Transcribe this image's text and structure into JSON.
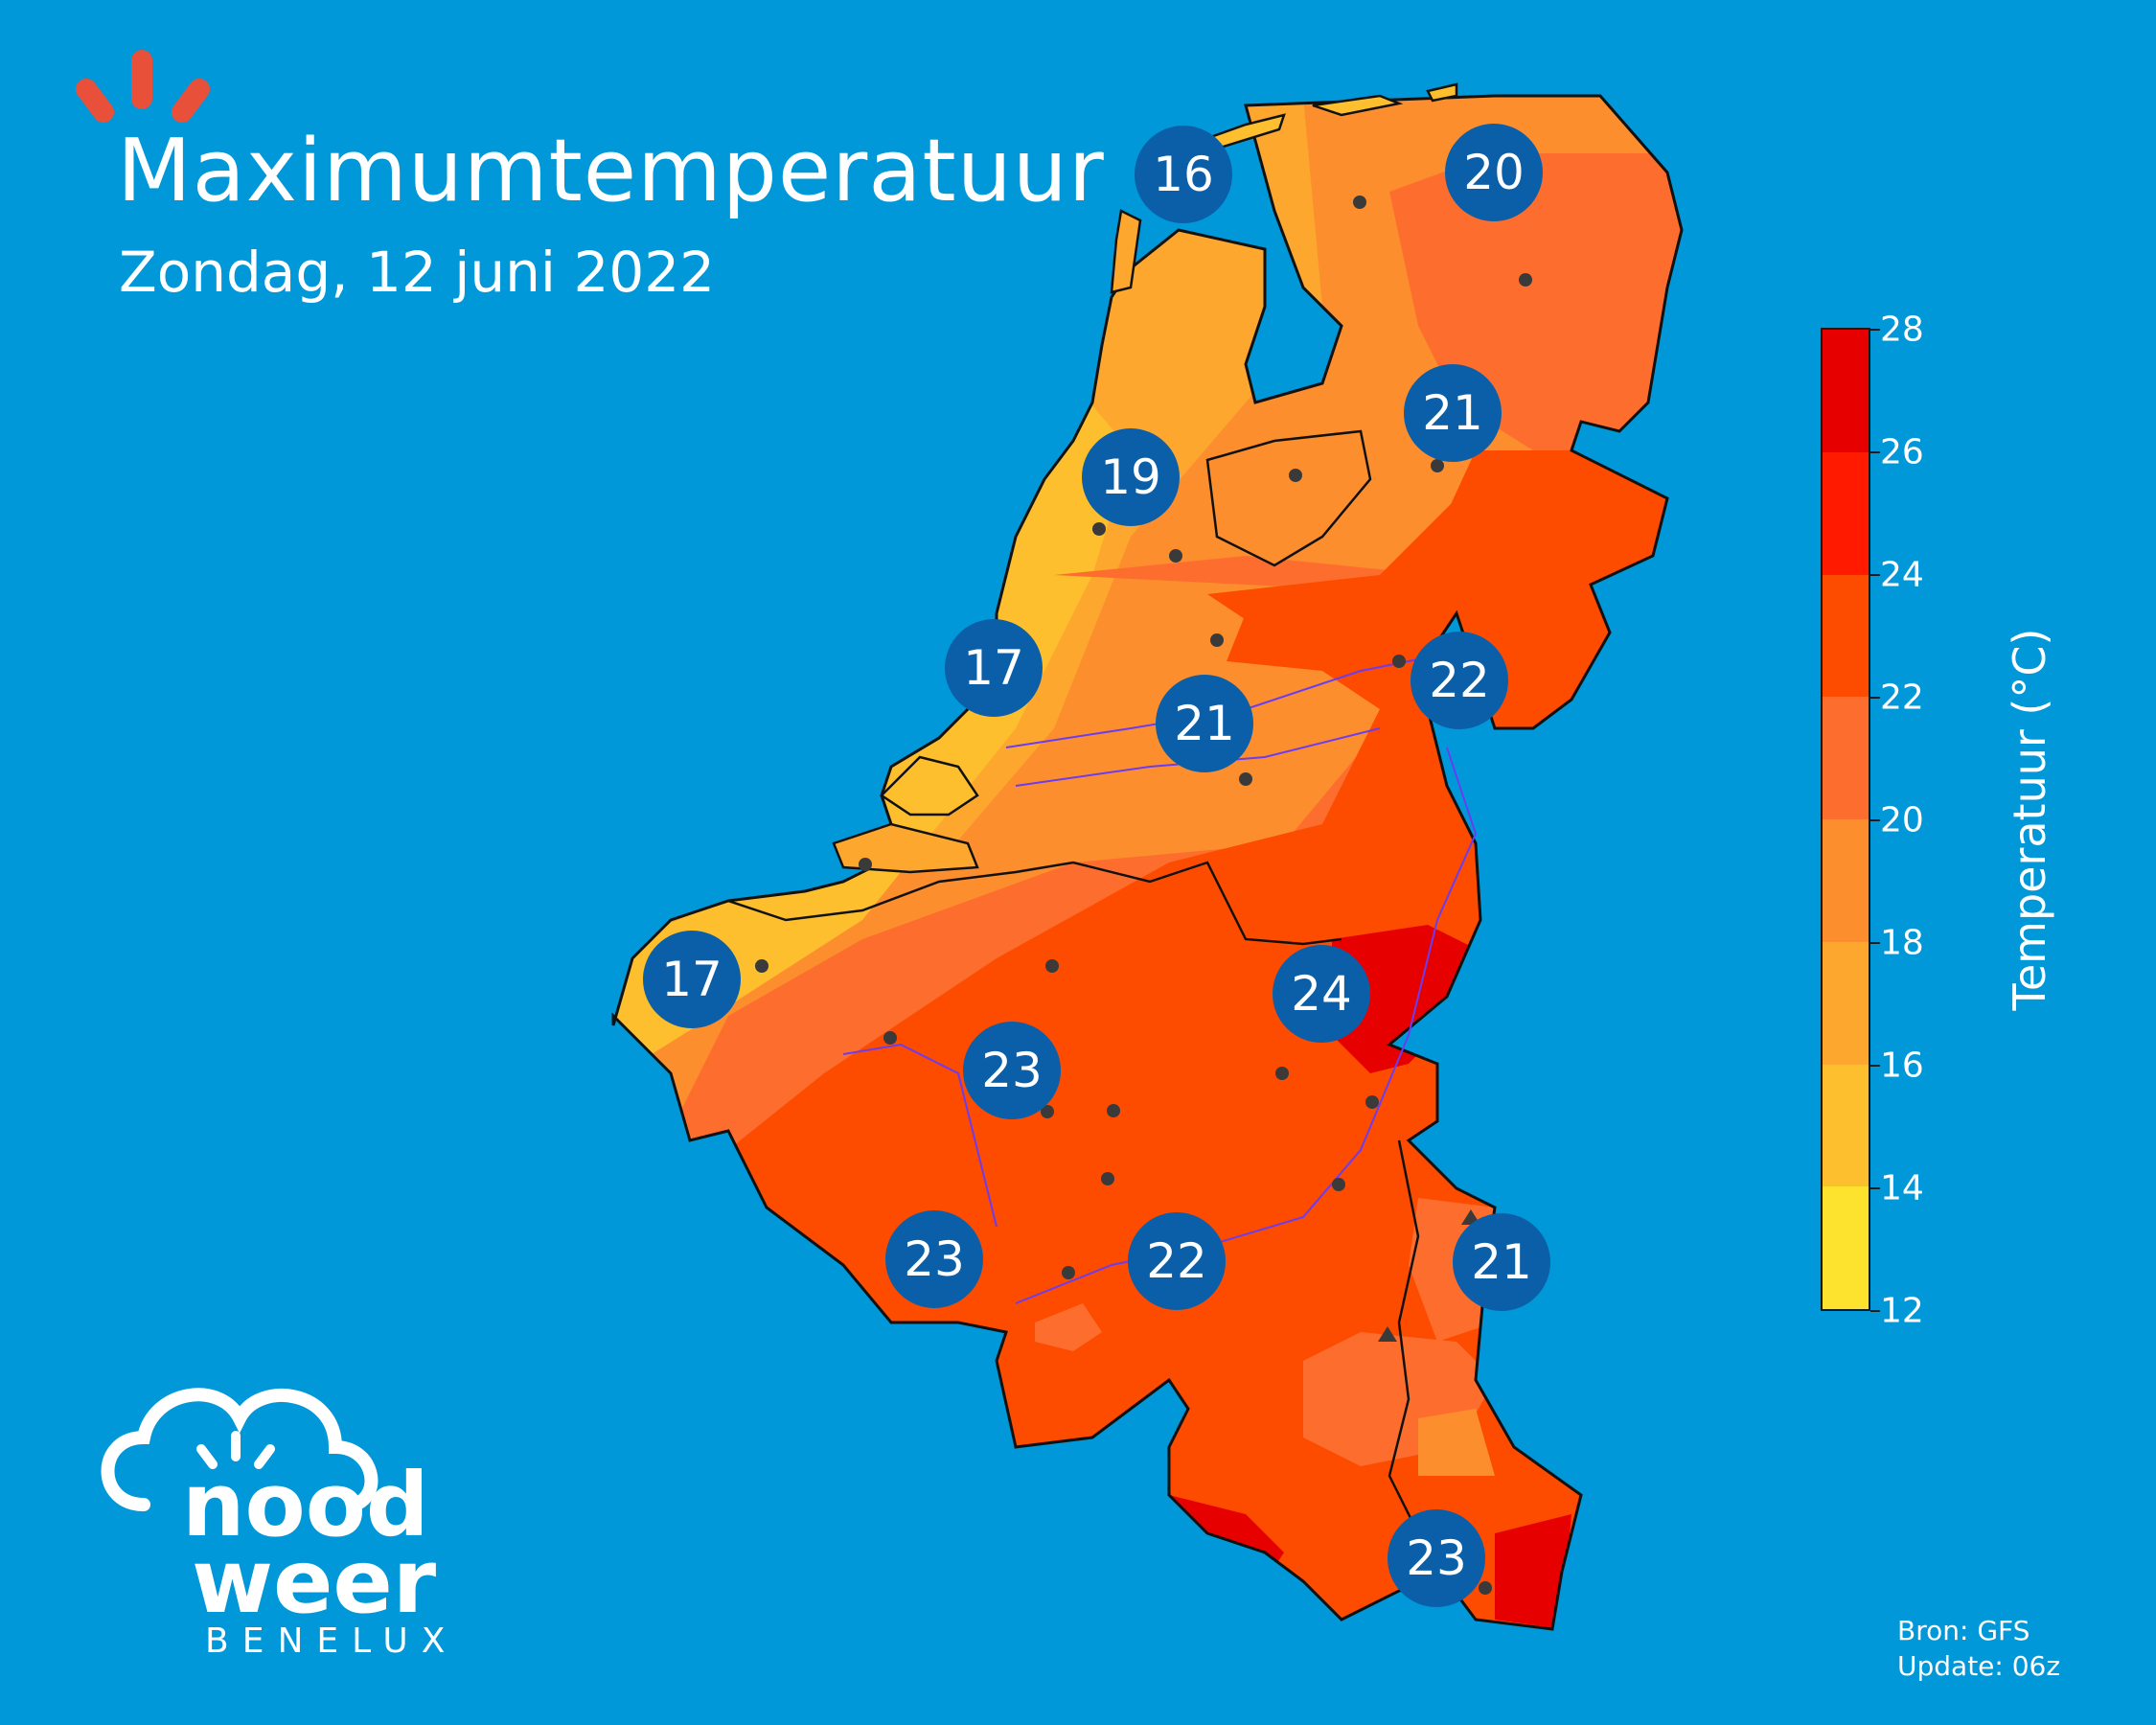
{
  "header": {
    "title": "Maximumtemperatuur",
    "subtitle": "Zondag, 12 juni 2022"
  },
  "brand": {
    "logo_text_line1": "nood",
    "logo_text_line2": "weer",
    "logo_sub": "BENELUX",
    "accent_color": "#e8503a"
  },
  "colorbar": {
    "label": "Temperatuur (°C)",
    "ticks": [
      "12",
      "14",
      "16",
      "18",
      "20",
      "22",
      "24",
      "26",
      "28"
    ],
    "bands": [
      "#fde22e",
      "#fdbf2e",
      "#fda72e",
      "#fd8e2e",
      "#fd6e2e",
      "#fd4b00",
      "#ff1a00",
      "#e60000"
    ]
  },
  "stations": [
    {
      "id": "texel",
      "value": "16"
    },
    {
      "id": "groningen",
      "value": "20"
    },
    {
      "id": "drenthe",
      "value": "21"
    },
    {
      "id": "noord-holland",
      "value": "19"
    },
    {
      "id": "zuid-holland",
      "value": "17"
    },
    {
      "id": "utrecht",
      "value": "21"
    },
    {
      "id": "gelderland",
      "value": "22"
    },
    {
      "id": "limburg",
      "value": "24"
    },
    {
      "id": "vlaanderen-kust",
      "value": "17"
    },
    {
      "id": "brussel",
      "value": "23"
    },
    {
      "id": "henegouwen",
      "value": "23"
    },
    {
      "id": "namen",
      "value": "22"
    },
    {
      "id": "oost-belgie",
      "value": "21"
    },
    {
      "id": "luxemburg",
      "value": "23"
    }
  ],
  "footer": {
    "source": "Bron: GFS",
    "update": "Update: 06z"
  }
}
